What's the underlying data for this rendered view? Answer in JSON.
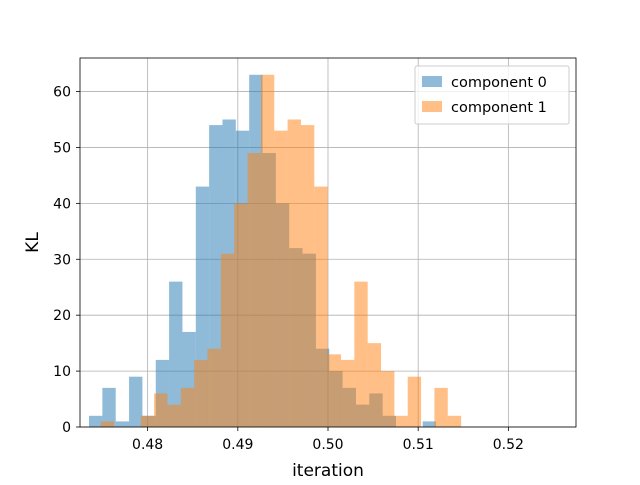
{
  "chart_data": {
    "type": "histogram",
    "title": "",
    "xlabel": "iteration",
    "ylabel": "KL",
    "xlim": [
      0.4725,
      0.5275
    ],
    "ylim": [
      0,
      66
    ],
    "x_ticks": [
      0.48,
      0.49,
      0.5,
      0.51,
      0.52
    ],
    "x_tick_labels": [
      "0.48",
      "0.49",
      "0.50",
      "0.51",
      "0.52"
    ],
    "y_ticks": [
      0,
      10,
      20,
      30,
      40,
      50,
      60
    ],
    "y_tick_labels": [
      "0",
      "10",
      "20",
      "30",
      "40",
      "50",
      "60"
    ],
    "grid": true,
    "legend_position": "top-right",
    "series": [
      {
        "name": "component 0",
        "color": "#1f77b4",
        "alpha": 0.5,
        "bin_start": 0.4735,
        "bin_width": 0.00148,
        "counts": [
          2,
          7,
          1,
          9,
          2,
          12,
          26,
          17,
          43,
          54,
          55,
          53,
          63,
          49,
          40,
          32,
          31,
          14,
          10,
          7,
          4,
          6,
          2,
          0,
          0,
          1
        ]
      },
      {
        "name": "component 1",
        "color": "#ff7f0e",
        "alpha": 0.5,
        "bin_start": 0.4748,
        "bin_width": 0.00148,
        "counts": [
          1,
          0,
          0,
          2,
          6,
          4,
          7,
          12,
          14,
          31,
          40,
          49,
          63,
          53,
          55,
          54,
          43,
          13,
          12,
          26,
          15,
          10,
          2,
          9,
          0,
          7,
          2
        ]
      }
    ]
  }
}
